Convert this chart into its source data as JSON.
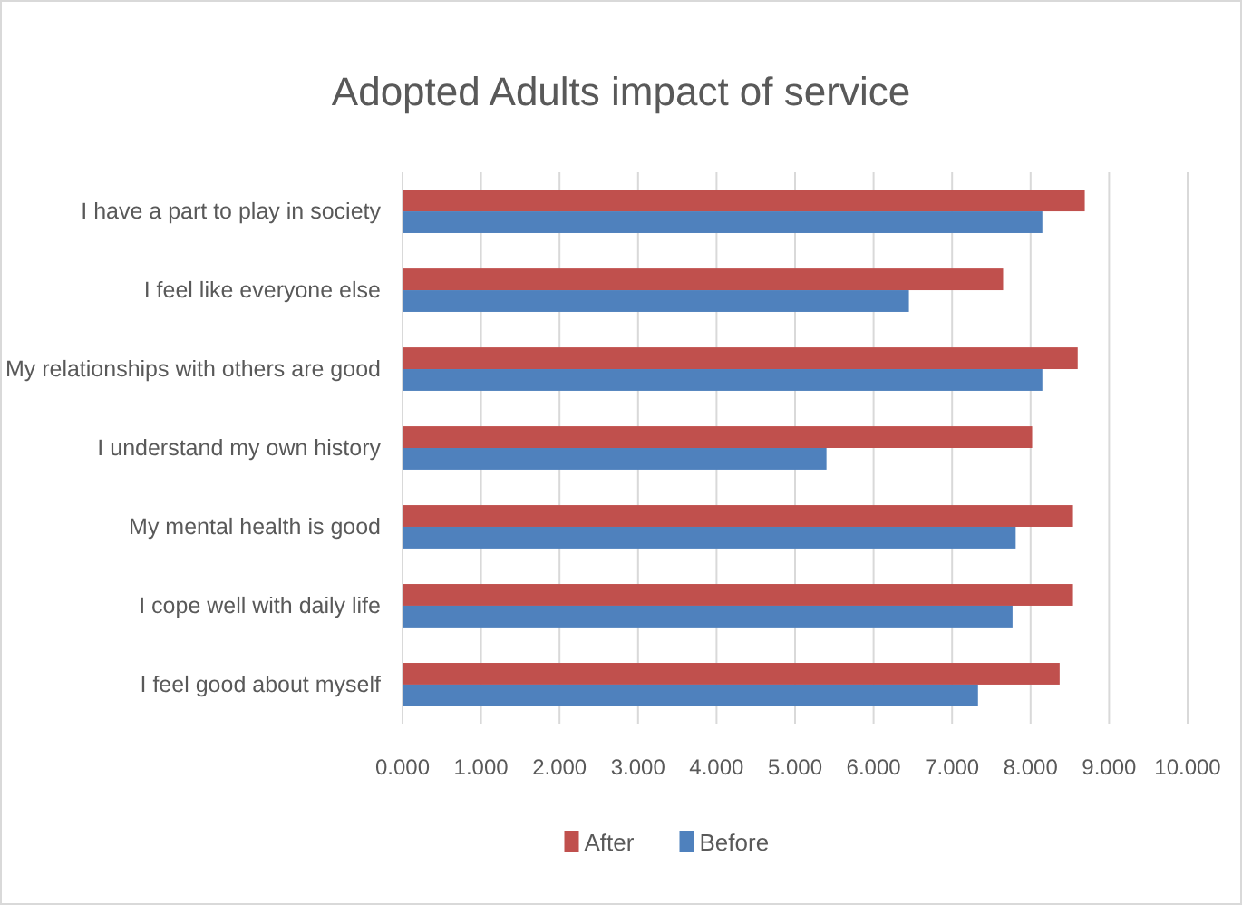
{
  "chart_data": {
    "type": "bar",
    "orientation": "horizontal",
    "title": "Adopted Adults impact of service",
    "categories": [
      "I have a part to play in society",
      "I feel like everyone else",
      "My relationships with others are good",
      "I understand my own history",
      "My mental health is good",
      "I cope well with daily life",
      "I feel good about myself"
    ],
    "series": [
      {
        "name": "After",
        "color": "#c0504d",
        "values": [
          8.69,
          7.65,
          8.6,
          8.02,
          8.54,
          8.54,
          8.37
        ]
      },
      {
        "name": "Before",
        "color": "#4f81bd",
        "values": [
          8.15,
          6.45,
          8.15,
          5.4,
          7.81,
          7.77,
          7.33
        ]
      }
    ],
    "xlim": [
      0,
      10
    ],
    "xticks": [
      {
        "value": 0,
        "label": "0.000"
      },
      {
        "value": 1,
        "label": "1.000"
      },
      {
        "value": 2,
        "label": "2.000"
      },
      {
        "value": 3,
        "label": "3.000"
      },
      {
        "value": 4,
        "label": "4.000"
      },
      {
        "value": 5,
        "label": "5.000"
      },
      {
        "value": 6,
        "label": "6.000"
      },
      {
        "value": 7,
        "label": "7.000"
      },
      {
        "value": 8,
        "label": "8.000"
      },
      {
        "value": 9,
        "label": "9.000"
      },
      {
        "value": 10,
        "label": "10.000"
      }
    ],
    "grid": "x",
    "legend": "bottom"
  }
}
